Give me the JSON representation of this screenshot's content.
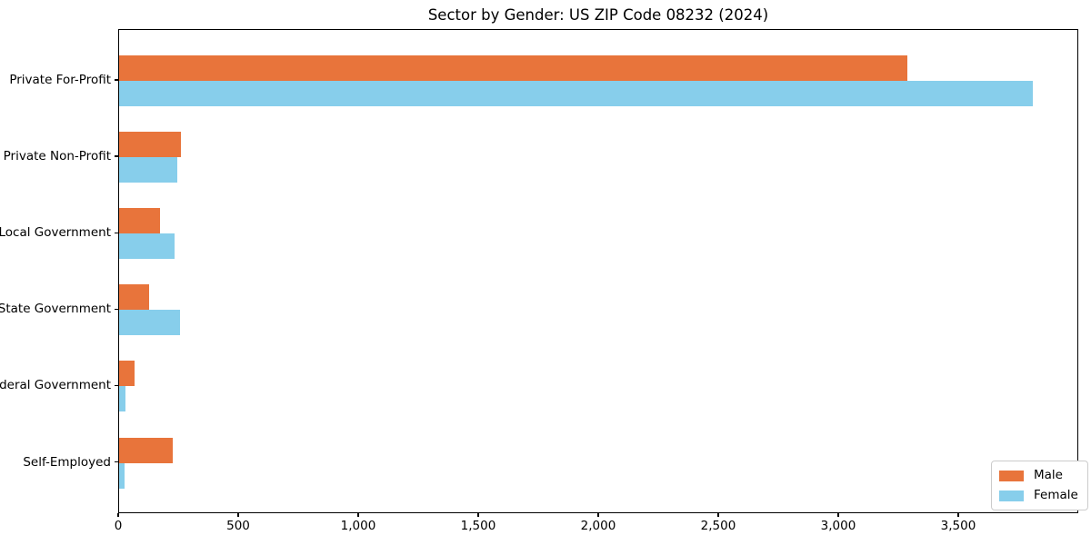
{
  "title": "Sector by Gender: US ZIP Code 08232 (2024)",
  "chart_data": {
    "type": "bar",
    "orientation": "horizontal",
    "title": "Sector by Gender: US ZIP Code 08232 (2024)",
    "categories": [
      "Private For-Profit",
      "Private Non-Profit",
      "Local Government",
      "State Government",
      "Federal Government",
      "Self-Employed"
    ],
    "series": [
      {
        "name": "Male",
        "color": "#E8743B",
        "values": [
          3285,
          258,
          170,
          125,
          66,
          225
        ]
      },
      {
        "name": "Female",
        "color": "#87CEEB",
        "values": [
          3805,
          243,
          230,
          253,
          28,
          22
        ]
      }
    ],
    "xlabel": "",
    "ylabel": "",
    "xlim": [
      0,
      4000
    ],
    "xticks": [
      0,
      500,
      1000,
      1500,
      2000,
      2500,
      3000,
      3500
    ],
    "xtick_labels": [
      "0",
      "500",
      "1,000",
      "1,500",
      "2,000",
      "2,500",
      "3,000",
      "3,500"
    ],
    "grid": false,
    "background": "#ffffff",
    "legend": {
      "position": "lower right",
      "entries": [
        {
          "label": "Male",
          "color": "#E8743B"
        },
        {
          "label": "Female",
          "color": "#87CEEB"
        }
      ]
    }
  }
}
